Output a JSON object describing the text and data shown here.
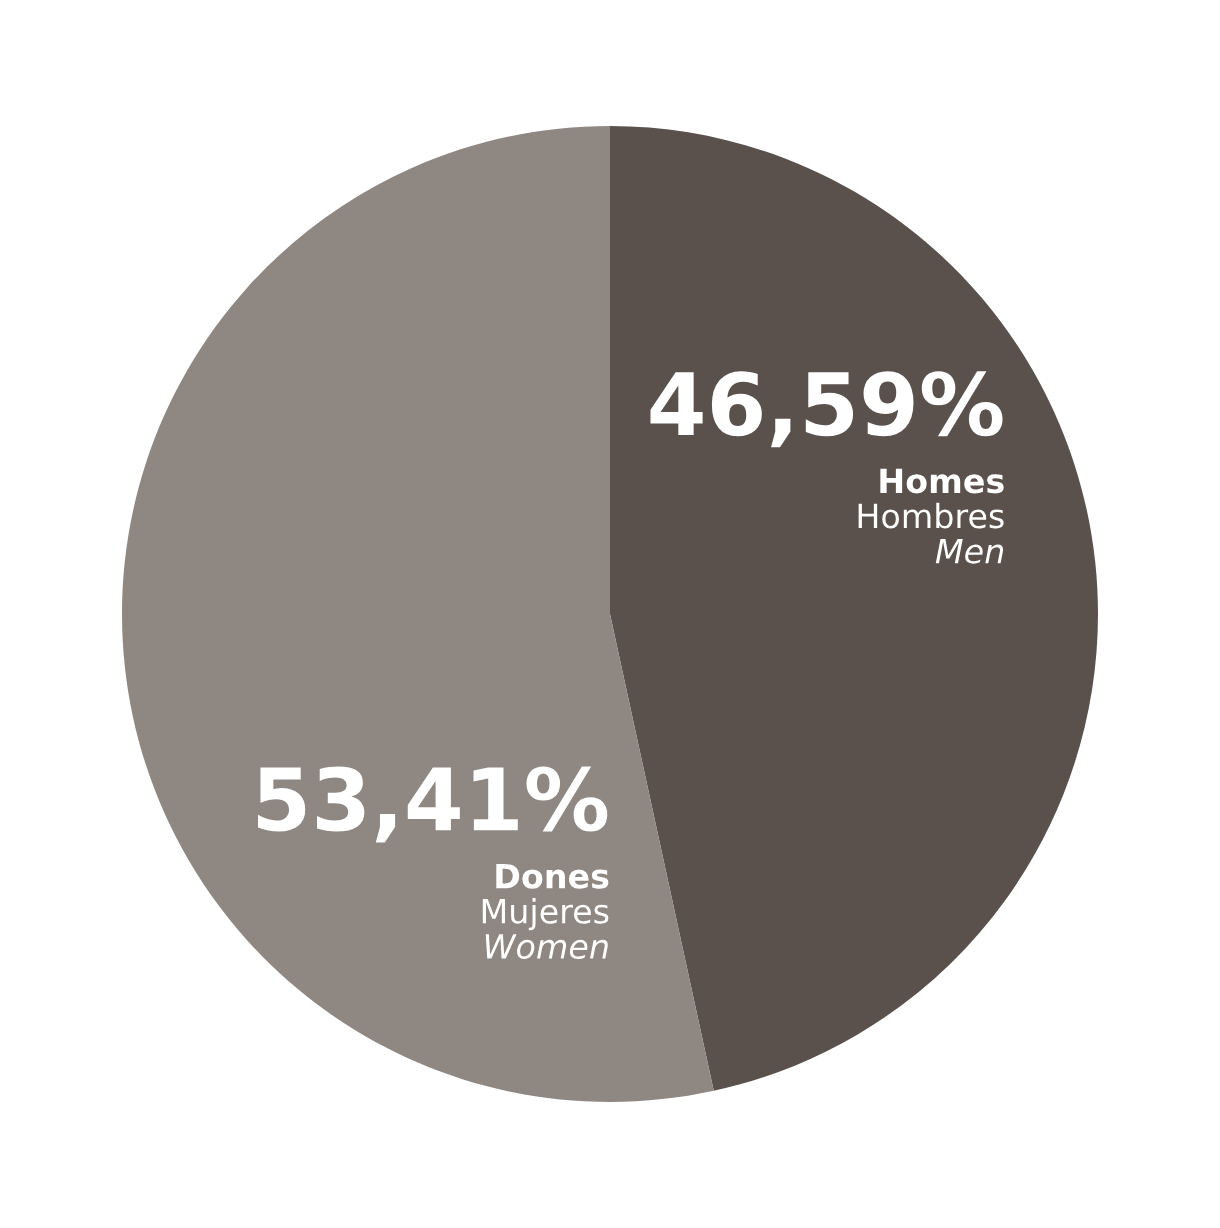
{
  "chart_data": {
    "type": "pie",
    "categories": [
      "Homes\nHombres\nMen",
      "Dones\nMujeres\nWomen"
    ],
    "values": [
      46.59,
      53.41
    ],
    "value_labels": [
      "46,59%",
      "53,41%"
    ],
    "colors": [
      "#5a514c",
      "#8f8782"
    ],
    "legend": false
  }
}
